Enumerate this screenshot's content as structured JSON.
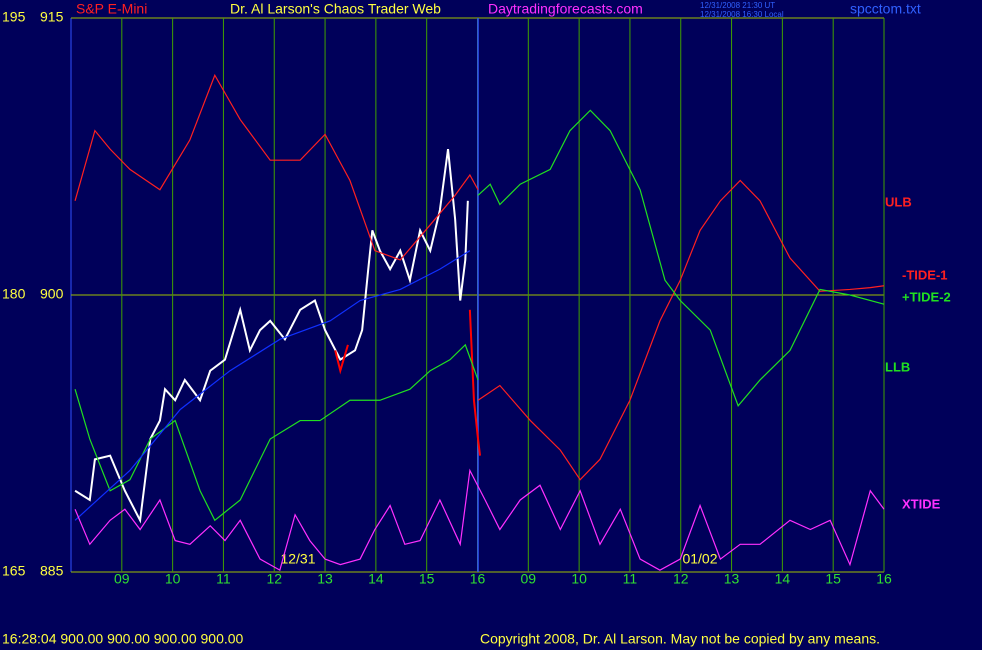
{
  "chart_data": {
    "type": "line",
    "symbol": "S&P E-Mini",
    "title": "Dr. Al Larson's Chaos Trader Web",
    "site": "Daytradingforecasts.com",
    "timestamps": [
      "12/31/2008 21:30 UT",
      "12/31/2008 16:30 Local"
    ],
    "file": "spcctom.txt",
    "status": "16:28:04  900.00 900.00 900.00 900.00",
    "copyright": "Copyright 2008, Dr. Al Larson. May not be copied by any means.",
    "date_labels": [
      "12/31",
      "01/02"
    ],
    "xlim": [
      0,
      16
    ],
    "xticks": [
      {
        "value": 1,
        "label": "09"
      },
      {
        "value": 2,
        "label": "10"
      },
      {
        "value": 3,
        "label": "11"
      },
      {
        "value": 4,
        "label": "12"
      },
      {
        "value": 5,
        "label": "13"
      },
      {
        "value": 6,
        "label": "14"
      },
      {
        "value": 7,
        "label": "15"
      },
      {
        "value": 8,
        "label": "16"
      },
      {
        "value": 9,
        "label": "09"
      },
      {
        "value": 10,
        "label": "10"
      },
      {
        "value": 11,
        "label": "11"
      },
      {
        "value": 12,
        "label": "12"
      },
      {
        "value": 13,
        "label": "13"
      },
      {
        "value": 14,
        "label": "14"
      },
      {
        "value": 15,
        "label": "15"
      },
      {
        "value": 16,
        "label": "16"
      }
    ],
    "ylim": [
      885,
      915
    ],
    "yticks": [
      885,
      900,
      915
    ],
    "y2lim": [
      165,
      195
    ],
    "y2ticks": [
      165,
      180,
      195
    ],
    "series": [
      {
        "color": "#ffffff",
        "x": [
          0.08,
          0.37,
          0.47,
          0.77,
          1.06,
          1.36,
          1.56,
          1.75,
          1.85,
          2.05,
          2.24,
          2.54,
          2.74,
          3.03,
          3.33,
          3.52,
          3.72,
          3.92,
          4.21,
          4.51,
          4.8,
          5.0,
          5.3,
          5.59,
          5.73,
          5.85,
          5.93,
          6.08,
          6.28,
          6.48,
          6.67,
          6.87,
          7.07,
          7.26,
          7.42,
          7.56,
          7.66,
          7.76,
          7.81
        ],
        "values": [
          889.4,
          888.9,
          891.1,
          891.3,
          889.4,
          887.8,
          892.2,
          893.2,
          894.9,
          894.3,
          895.4,
          894.3,
          895.9,
          896.5,
          899.2,
          897.0,
          898.1,
          898.6,
          897.6,
          899.2,
          899.7,
          898.1,
          896.5,
          897.0,
          898.1,
          901.4,
          903.5,
          902.4,
          901.4,
          902.4,
          900.8,
          903.5,
          902.4,
          904.6,
          907.9,
          904.1,
          899.7,
          901.9,
          905.1
        ]
      },
      {
        "color": "#ff0000",
        "x": [
          5.2,
          5.3,
          5.45,
          5.5,
          7.85,
          7.93,
          8.01,
          8.05
        ],
        "values": [
          897.0,
          895.9,
          897.3,
          null,
          899.2,
          894.3,
          892.2,
          891.3
        ]
      },
      {
        "name": "ULB",
        "color": "#ff2020",
        "x": [
          0.08,
          0.47,
          0.77,
          1.16,
          1.75,
          2.34,
          2.83,
          3.33,
          3.92,
          4.51,
          5.0,
          5.49,
          5.98,
          6.48,
          7.07,
          7.56,
          7.85,
          8.01
        ],
        "values": [
          905.1,
          908.9,
          907.9,
          906.8,
          905.7,
          908.4,
          911.9,
          909.5,
          907.3,
          907.3,
          908.7,
          906.2,
          902.4,
          901.9,
          903.8,
          905.4,
          906.5,
          905.7
        ]
      },
      {
        "name": "LLB",
        "color": "#20e020",
        "x": [
          0.08,
          0.37,
          0.77,
          1.16,
          1.56,
          2.05,
          2.54,
          2.83,
          3.33,
          3.92,
          4.51,
          4.9,
          5.49,
          6.08,
          6.67,
          7.07,
          7.46,
          7.76,
          8.01
        ],
        "values": [
          894.9,
          892.2,
          889.4,
          890.0,
          892.2,
          893.2,
          889.4,
          887.8,
          888.9,
          892.2,
          893.2,
          893.2,
          894.3,
          894.3,
          894.9,
          895.9,
          896.5,
          897.3,
          895.4
        ]
      },
      {
        "color": "#1030ff",
        "x": [
          0.08,
          1.16,
          2.15,
          3.13,
          4.11,
          5.1,
          5.69,
          6.48,
          7.26,
          7.85
        ],
        "values": [
          887.8,
          890.5,
          893.8,
          895.9,
          897.6,
          898.6,
          899.7,
          900.3,
          901.4,
          902.4
        ]
      },
      {
        "name": "-TIDE-1",
        "color": "#ff2020",
        "x": [
          8.01,
          8.44,
          9.04,
          9.63,
          10.02,
          10.41,
          11.0,
          11.59,
          11.99,
          12.38,
          12.78,
          13.17,
          13.56,
          14.15,
          14.74,
          15.33,
          15.73,
          16.0
        ],
        "values": [
          894.3,
          895.1,
          893.2,
          891.6,
          890.0,
          891.1,
          894.3,
          898.6,
          900.8,
          903.5,
          905.1,
          906.2,
          905.1,
          902.0,
          900.2,
          900.3,
          900.4,
          900.5
        ]
      },
      {
        "name": "+TIDE-2",
        "color": "#20e020",
        "x": [
          8.01,
          8.25,
          8.44,
          8.84,
          9.43,
          9.82,
          10.22,
          10.61,
          11.2,
          11.69,
          11.99,
          12.58,
          13.13,
          13.56,
          14.15,
          14.74,
          15.33,
          16.0
        ],
        "values": [
          905.4,
          906.0,
          904.9,
          906.0,
          906.8,
          908.9,
          910.0,
          908.9,
          905.7,
          900.8,
          899.7,
          898.1,
          894.0,
          895.4,
          897.0,
          900.3,
          900.0,
          899.5
        ]
      },
      {
        "name": "XTIDE",
        "color": "#ff30ff",
        "x": [
          0.08,
          0.37,
          0.77,
          1.06,
          1.36,
          1.75,
          2.05,
          2.34,
          2.74,
          3.03,
          3.33,
          3.72,
          4.11,
          4.41,
          4.7,
          5.0,
          5.3,
          5.69,
          5.98,
          6.28,
          6.57,
          6.87,
          7.26,
          7.66,
          7.85,
          8.15,
          8.44,
          8.84,
          9.23,
          9.63,
          10.02,
          10.41,
          10.81,
          11.2,
          11.59,
          11.99,
          12.38,
          12.78,
          13.17,
          13.56,
          14.15,
          14.55,
          14.94,
          15.33,
          15.73,
          16.0
        ],
        "values": [
          888.4,
          886.5,
          887.8,
          888.4,
          887.3,
          888.9,
          886.7,
          886.5,
          887.5,
          886.7,
          887.8,
          885.7,
          885.1,
          888.1,
          886.7,
          885.7,
          885.4,
          885.7,
          887.3,
          888.6,
          886.5,
          886.7,
          888.9,
          886.5,
          890.5,
          888.9,
          887.3,
          888.9,
          889.7,
          887.3,
          889.4,
          886.5,
          888.4,
          885.7,
          885.1,
          885.7,
          888.6,
          885.7,
          886.5,
          886.5,
          887.8,
          887.3,
          887.8,
          885.4,
          889.4,
          888.4
        ]
      }
    ]
  }
}
